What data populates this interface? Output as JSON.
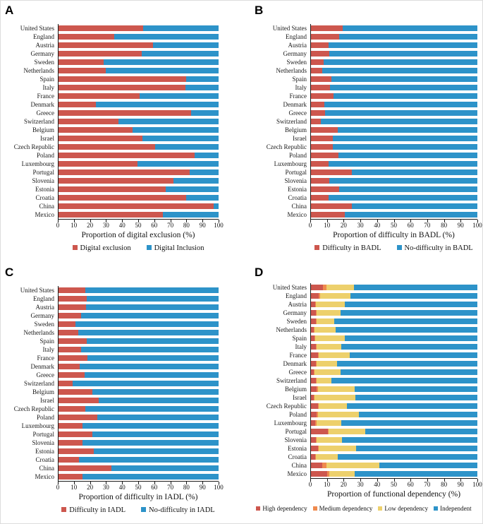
{
  "chart_data": [
    {
      "panel_label": "A",
      "type": "bar",
      "orientation": "horizontal",
      "stacked": true,
      "grid": false,
      "legend_position": "bottom",
      "xlabel": "Proportion of digital exclusion (%)",
      "xlim": [
        0,
        100
      ],
      "xticks": [
        0,
        10,
        20,
        30,
        40,
        50,
        60,
        70,
        80,
        90,
        100
      ],
      "categories": [
        "United States",
        "England",
        "Austria",
        "Germany",
        "Sweden",
        "Netherlands",
        "Spain",
        "Italy",
        "France",
        "Denmark",
        "Greece",
        "Switzerland",
        "Belgium",
        "Israel",
        "Czech Republic",
        "Poland",
        "Luxembourg",
        "Portugal",
        "Slovenia",
        "Estonia",
        "Croatia",
        "China",
        "Mexico"
      ],
      "series": [
        {
          "name": "Digital exclusion",
          "color": "#cd574e",
          "values": [
            53,
            35,
            59,
            52,
            28.5,
            30,
            80,
            79.5,
            51,
            23.5,
            83,
            37.5,
            46.5,
            52.5,
            60.5,
            85,
            49.5,
            82,
            72,
            67,
            80,
            97,
            65.5
          ]
        },
        {
          "name": "Digital Inclusion",
          "color": "#2d93c9",
          "values": [
            47,
            65,
            41,
            48,
            71.5,
            70,
            20,
            20.5,
            49,
            76.5,
            17,
            62.5,
            53.5,
            47.5,
            39.5,
            15,
            50.5,
            18,
            28,
            33,
            20,
            3,
            34.5
          ]
        }
      ]
    },
    {
      "panel_label": "B",
      "type": "bar",
      "orientation": "horizontal",
      "stacked": true,
      "grid": false,
      "legend_position": "bottom",
      "xlabel": "Proportion of difficulty in BADL (%)",
      "xlim": [
        0,
        100
      ],
      "xticks": [
        0,
        10,
        20,
        30,
        40,
        50,
        60,
        70,
        80,
        90,
        100
      ],
      "categories": [
        "United States",
        "England",
        "Austria",
        "Germany",
        "Sweden",
        "Netherlands",
        "Spain",
        "Italy",
        "France",
        "Denmark",
        "Greece",
        "Switzerland",
        "Belgium",
        "Israel",
        "Czech Republic",
        "Poland",
        "Luxembourg",
        "Portugal",
        "Slovenia",
        "Estonia",
        "Croatia",
        "China",
        "Mexico"
      ],
      "series": [
        {
          "name": "Difficulty in BADL",
          "color": "#cd574e",
          "values": [
            19.5,
            17.5,
            11,
            11.5,
            8,
            7,
            12.5,
            12,
            14,
            8.5,
            9,
            6.5,
            16.5,
            13.5,
            13.5,
            17,
            11,
            25,
            11.5,
            17.5,
            11,
            25,
            20.5
          ]
        },
        {
          "name": "No-difficulty in BADL",
          "color": "#2d93c9",
          "values": [
            80.5,
            82.5,
            89,
            88.5,
            92,
            93,
            87.5,
            88,
            86,
            91.5,
            91,
            93.5,
            83.5,
            86.5,
            86.5,
            83,
            89,
            75,
            88.5,
            82.5,
            89,
            75,
            79.5
          ]
        }
      ]
    },
    {
      "panel_label": "C",
      "type": "bar",
      "orientation": "horizontal",
      "stacked": true,
      "grid": false,
      "legend_position": "bottom",
      "xlabel": "Proportion of difficulty in IADL (%)",
      "xlim": [
        0,
        100
      ],
      "xticks": [
        0,
        10,
        20,
        30,
        40,
        50,
        60,
        70,
        80,
        90,
        100
      ],
      "categories": [
        "United States",
        "England",
        "Austria",
        "Germany",
        "Sweden",
        "Netherlands",
        "Spain",
        "Italy",
        "France",
        "Denmark",
        "Greece",
        "Switzerland",
        "Belgium",
        "Israel",
        "Czech Republic",
        "Poland",
        "Luxembourg",
        "Portugal",
        "Slovenia",
        "Estonia",
        "Croatia",
        "China",
        "Mexico"
      ],
      "series": [
        {
          "name": "Difficulty in IADL",
          "color": "#cd574e",
          "values": [
            17,
            18,
            17.5,
            14.5,
            11,
            12.5,
            18,
            14.5,
            18.5,
            13.5,
            16.5,
            9,
            21.5,
            25.5,
            17,
            24.5,
            15.5,
            21.5,
            15.5,
            22.5,
            13,
            33.5,
            15.5
          ]
        },
        {
          "name": "No-difficulty in IADL",
          "color": "#2d93c9",
          "values": [
            83,
            82,
            82.5,
            85.5,
            89,
            87.5,
            82,
            85.5,
            81.5,
            86.5,
            83.5,
            91,
            78.5,
            74.5,
            83,
            75.5,
            84.5,
            78.5,
            84.5,
            77.5,
            87,
            66.5,
            84.5
          ]
        }
      ]
    },
    {
      "panel_label": "D",
      "type": "bar",
      "orientation": "horizontal",
      "stacked": true,
      "grid": false,
      "legend_position": "bottom",
      "xlabel": "Proportion of functional dependency (%)",
      "xlim": [
        0,
        100
      ],
      "xticks": [
        0,
        10,
        20,
        30,
        40,
        50,
        60,
        70,
        80,
        90,
        100
      ],
      "categories": [
        "United States",
        "England",
        "Austria",
        "Germany",
        "Sweden",
        "Netherlands",
        "Spain",
        "Italy",
        "France",
        "Denmark",
        "Greece",
        "Switzerland",
        "Belgium",
        "Israel",
        "Czech Republic",
        "Poland",
        "Luxembourg",
        "Portugal",
        "Slovenia",
        "Estonia",
        "Croatia",
        "China",
        "Mexico"
      ],
      "series": [
        {
          "name": "High dependency",
          "color": "#cd574e",
          "values": [
            7.5,
            5,
            3,
            3.5,
            3.5,
            2,
            2.5,
            3.5,
            4.5,
            3.5,
            2,
            3.5,
            4,
            2,
            4.5,
            4,
            3,
            10.5,
            3.5,
            4.5,
            3,
            7,
            10
          ]
        },
        {
          "name": "Medium dependency",
          "color": "#ef8a4e",
          "values": [
            2,
            1,
            0.5,
            0.5,
            0.5,
            0.5,
            0.5,
            0.5,
            0.5,
            0.5,
            0.5,
            0.5,
            0.5,
            0.5,
            0.5,
            0.5,
            1,
            0.5,
            0.5,
            0.5,
            0.5,
            2.5,
            1.5
          ]
        },
        {
          "name": "Low dependency",
          "color": "#edd06c",
          "values": [
            16.5,
            18,
            17,
            14,
            10.5,
            12.5,
            17.5,
            14.5,
            18.5,
            12,
            15.5,
            8.5,
            22,
            24.5,
            17,
            24.5,
            14.5,
            22,
            15,
            22.5,
            13,
            32,
            15
          ]
        },
        {
          "name": "Independent",
          "color": "#2d93c9",
          "values": [
            74,
            76,
            79.5,
            82,
            85.5,
            85,
            79.5,
            81.5,
            76.5,
            84,
            82,
            87.5,
            73.5,
            73,
            78,
            71,
            81.5,
            67,
            81,
            72.5,
            83.5,
            58.5,
            73.5
          ]
        }
      ]
    }
  ]
}
